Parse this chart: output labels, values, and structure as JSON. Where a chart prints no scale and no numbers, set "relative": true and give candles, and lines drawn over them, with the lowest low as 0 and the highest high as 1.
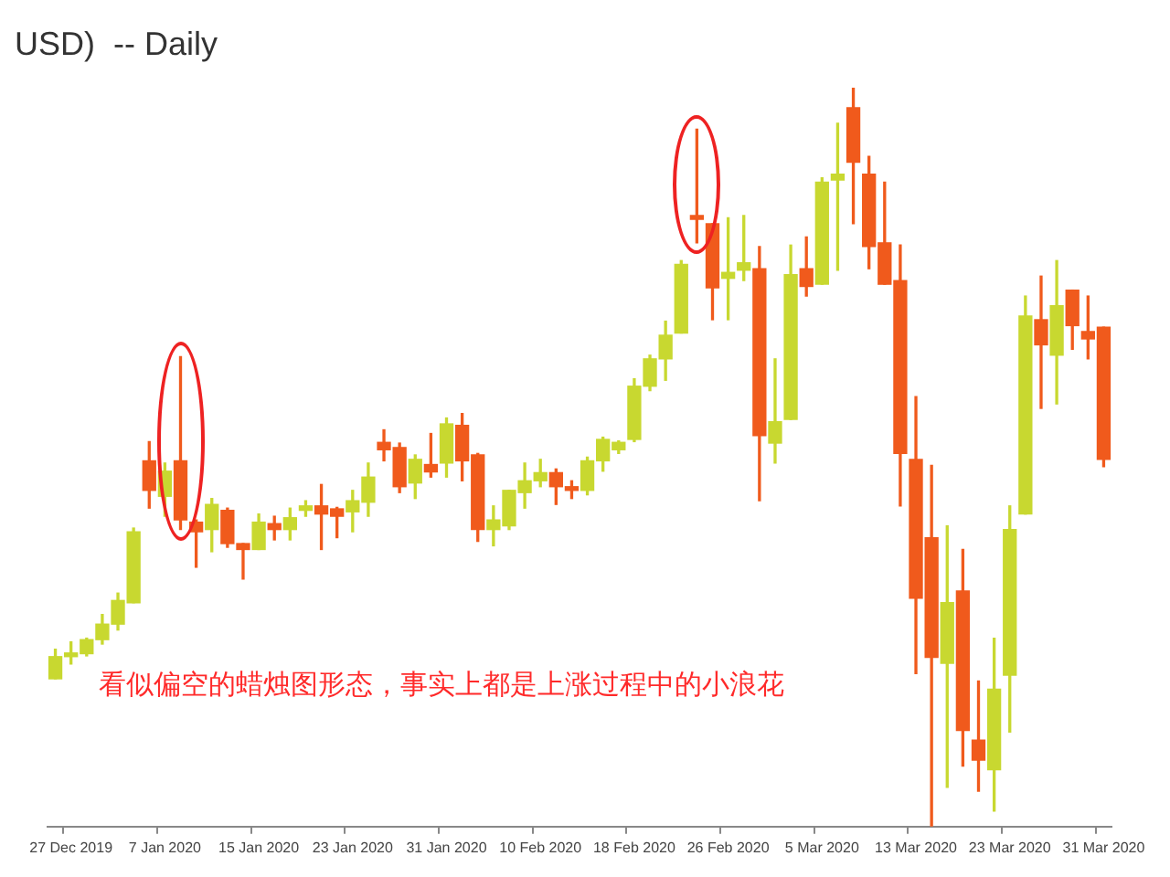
{
  "chart_data": {
    "type": "candlestick",
    "title": "USD)  -- Daily",
    "relative": true,
    "categories": [
      null,
      "27 Dec 2019",
      null,
      null,
      null,
      null,
      null,
      "7 Jan 2020",
      null,
      null,
      null,
      null,
      null,
      "15 Jan 2020",
      null,
      null,
      null,
      null,
      null,
      "23 Jan 2020",
      null,
      null,
      null,
      null,
      null,
      "31 Jan 2020",
      null,
      null,
      null,
      null,
      null,
      "10 Feb 2020",
      null,
      null,
      null,
      null,
      null,
      "18 Feb 2020",
      null,
      null,
      null,
      null,
      null,
      "26 Feb 2020",
      null,
      null,
      null,
      null,
      null,
      "5 Mar 2020",
      null,
      null,
      null,
      null,
      null,
      "13 Mar 2020",
      null,
      null,
      null,
      null,
      null,
      "23 Mar 2020",
      null,
      null,
      null,
      null,
      null,
      "31 Mar 2020"
    ],
    "ohlc": [
      [
        0.2,
        0.24,
        0.2,
        0.23
      ],
      [
        0.23,
        0.25,
        0.22,
        0.234
      ],
      [
        0.234,
        0.255,
        0.231,
        0.253
      ],
      [
        0.253,
        0.287,
        0.247,
        0.274
      ],
      [
        0.274,
        0.316,
        0.266,
        0.306
      ],
      [
        0.303,
        0.404,
        0.303,
        0.399
      ],
      [
        0.495,
        0.521,
        0.431,
        0.455
      ],
      [
        0.447,
        0.492,
        0.42,
        0.481
      ],
      [
        0.495,
        0.636,
        0.402,
        0.415
      ],
      [
        0.412,
        0.415,
        0.351,
        0.399
      ],
      [
        0.402,
        0.444,
        0.372,
        0.436
      ],
      [
        0.428,
        0.431,
        0.378,
        0.383
      ],
      [
        0.383,
        0.383,
        0.335,
        0.375
      ],
      [
        0.375,
        0.423,
        0.375,
        0.412
      ],
      [
        0.41,
        0.42,
        0.388,
        0.402
      ],
      [
        0.402,
        0.431,
        0.388,
        0.418
      ],
      [
        0.428,
        0.441,
        0.42,
        0.434
      ],
      [
        0.434,
        0.463,
        0.375,
        0.423
      ],
      [
        0.43,
        0.432,
        0.391,
        0.42
      ],
      [
        0.426,
        0.455,
        0.399,
        0.441
      ],
      [
        0.439,
        0.492,
        0.42,
        0.473
      ],
      [
        0.52,
        0.537,
        0.495,
        0.51
      ],
      [
        0.513,
        0.519,
        0.452,
        0.46
      ],
      [
        0.465,
        0.503,
        0.444,
        0.497
      ],
      [
        0.49,
        0.532,
        0.473,
        0.48
      ],
      [
        0.492,
        0.553,
        0.473,
        0.545
      ],
      [
        0.543,
        0.559,
        0.468,
        0.495
      ],
      [
        0.503,
        0.505,
        0.386,
        0.402
      ],
      [
        0.402,
        0.434,
        0.38,
        0.415
      ],
      [
        0.407,
        0.455,
        0.402,
        0.455
      ],
      [
        0.452,
        0.492,
        0.431,
        0.468
      ],
      [
        0.468,
        0.497,
        0.46,
        0.479
      ],
      [
        0.479,
        0.484,
        0.436,
        0.46
      ],
      [
        0.46,
        0.468,
        0.444,
        0.455
      ],
      [
        0.455,
        0.5,
        0.449,
        0.495
      ],
      [
        0.495,
        0.527,
        0.481,
        0.524
      ],
      [
        0.51,
        0.522,
        0.505,
        0.52
      ],
      [
        0.524,
        0.606,
        0.521,
        0.596
      ],
      [
        0.596,
        0.638,
        0.59,
        0.633
      ],
      [
        0.633,
        0.684,
        0.604,
        0.665
      ],
      [
        0.668,
        0.766,
        0.668,
        0.761
      ],
      [
        0.827,
        0.944,
        0.79,
        0.822
      ],
      [
        0.816,
        0.816,
        0.686,
        0.729
      ],
      [
        0.742,
        0.824,
        0.686,
        0.75
      ],
      [
        0.753,
        0.827,
        0.739,
        0.763
      ],
      [
        0.755,
        0.785,
        0.441,
        0.529
      ],
      [
        0.519,
        0.633,
        0.492,
        0.548
      ],
      [
        0.551,
        0.787,
        0.551,
        0.747
      ],
      [
        0.755,
        0.798,
        0.718,
        0.731
      ],
      [
        0.734,
        0.878,
        0.734,
        0.872
      ],
      [
        0.875,
        0.952,
        0.753,
        0.883
      ],
      [
        0.973,
        1,
        0.816,
        0.899
      ],
      [
        0.883,
        0.907,
        0.755,
        0.785
      ],
      [
        0.79,
        0.872,
        0.734,
        0.734
      ],
      [
        0.739,
        0.787,
        0.434,
        0.505
      ],
      [
        0.497,
        0.582,
        0.207,
        0.309
      ],
      [
        0.391,
        0.489,
        0,
        0.229
      ],
      [
        0.221,
        0.407,
        0.053,
        0.303
      ],
      [
        0.319,
        0.375,
        0.082,
        0.13
      ],
      [
        0.117,
        0.197,
        0.048,
        0.09
      ],
      [
        0.077,
        0.255,
        0.021,
        0.186
      ],
      [
        0.205,
        0.434,
        0.128,
        0.402
      ],
      [
        0.423,
        0.718,
        0.423,
        0.691
      ],
      [
        0.686,
        0.745,
        0.566,
        0.652
      ],
      [
        0.638,
        0.766,
        0.572,
        0.705
      ],
      [
        0.726,
        0.726,
        0.646,
        0.678
      ],
      [
        0.67,
        0.718,
        0.633,
        0.66
      ],
      [
        0.676,
        0.676,
        0.487,
        0.497
      ]
    ],
    "colors": [
      "#c8d830",
      "#c8d830",
      "#c8d830",
      "#c8d830",
      "#c8d830",
      "#c8d830",
      "#f05a1c",
      "#c8d830",
      "#f05a1c",
      "#f05a1c",
      "#c8d830",
      "#f05a1c",
      "#f05a1c",
      "#c8d830",
      "#f05a1c",
      "#c8d830",
      "#c8d830",
      "#f05a1c",
      "#f05a1c",
      "#c8d830",
      "#c8d830",
      "#f05a1c",
      "#f05a1c",
      "#c8d830",
      "#f05a1c",
      "#c8d830",
      "#f05a1c",
      "#f05a1c",
      "#c8d830",
      "#c8d830",
      "#c8d830",
      "#c8d830",
      "#f05a1c",
      "#f05a1c",
      "#c8d830",
      "#c8d830",
      "#c8d830",
      "#c8d830",
      "#c8d830",
      "#c8d830",
      "#c8d830",
      "#f05a1c",
      "#f05a1c",
      "#c8d830",
      "#c8d830",
      "#f05a1c",
      "#c8d830",
      "#c8d830",
      "#f05a1c",
      "#c8d830",
      "#c8d830",
      "#f05a1c",
      "#f05a1c",
      "#f05a1c",
      "#f05a1c",
      "#f05a1c",
      "#f05a1c",
      "#c8d830",
      "#f05a1c",
      "#f05a1c",
      "#c8d830",
      "#c8d830",
      "#c8d830",
      "#f05a1c",
      "#c8d830",
      "#f05a1c",
      "#f05a1c",
      "#f05a1c"
    ],
    "annotations": [
      "看似偏空的蜡烛图形态，事实上都是上涨过程中的小浪花"
    ]
  }
}
